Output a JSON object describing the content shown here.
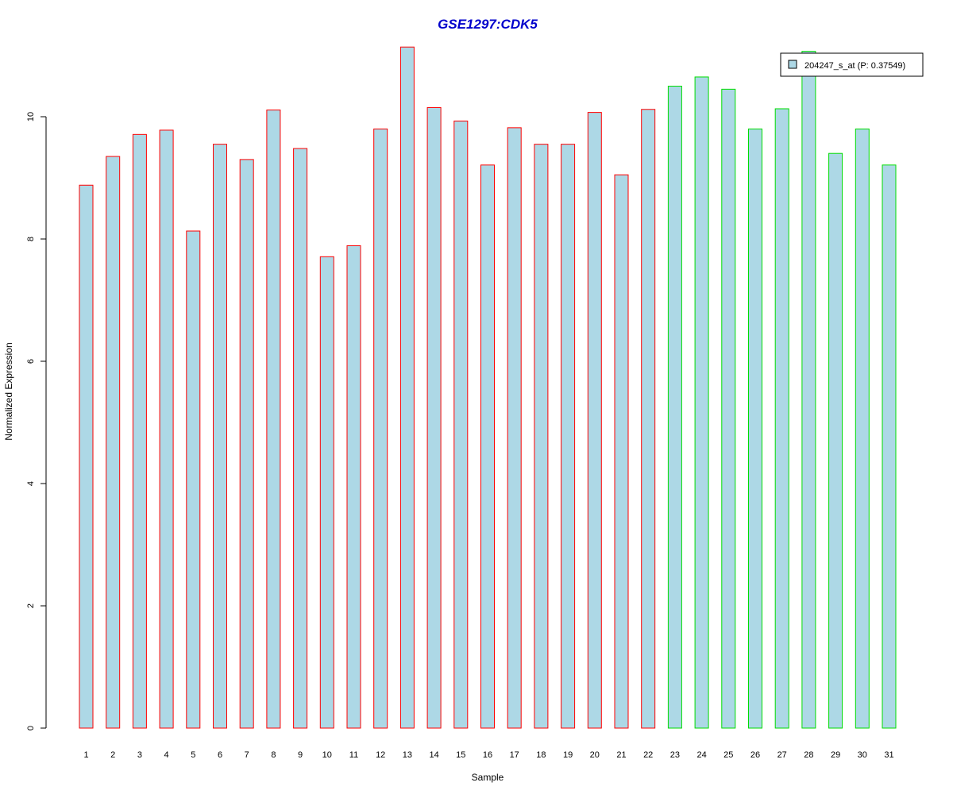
{
  "chart_data": {
    "type": "bar",
    "title": "GSE1297:CDK5",
    "xlabel": "Sample",
    "ylabel": "Normalized Expression",
    "ylim": [
      0,
      11.2
    ],
    "yticks": [
      0,
      2,
      4,
      6,
      8,
      10
    ],
    "grid": false,
    "legend_position": "top-right",
    "categories": [
      "1",
      "2",
      "3",
      "4",
      "5",
      "6",
      "7",
      "8",
      "9",
      "10",
      "11",
      "12",
      "13",
      "14",
      "15",
      "16",
      "17",
      "18",
      "19",
      "20",
      "21",
      "22",
      "23",
      "24",
      "25",
      "26",
      "27",
      "28",
      "29",
      "30",
      "31"
    ],
    "series": [
      {
        "name": "204247_s_at (P: 0.37549)",
        "values": [
          8.88,
          9.35,
          9.71,
          9.78,
          8.13,
          9.55,
          9.3,
          10.11,
          9.48,
          7.71,
          7.89,
          9.8,
          11.14,
          10.15,
          9.93,
          9.21,
          9.82,
          9.55,
          9.55,
          10.07,
          9.05,
          10.12,
          10.5,
          10.65,
          10.45,
          9.8,
          10.13,
          11.07,
          9.4,
          9.8,
          9.21
        ]
      }
    ],
    "groups": [
      {
        "samples": [
          1,
          22
        ],
        "border_color": "#ff0000"
      },
      {
        "samples": [
          23,
          31
        ],
        "border_color": "#00dd00"
      }
    ],
    "colors": {
      "bar_fill": "#add8e6",
      "title": "#0000cc",
      "axis": "#000000",
      "legend_border": "#000000"
    }
  }
}
